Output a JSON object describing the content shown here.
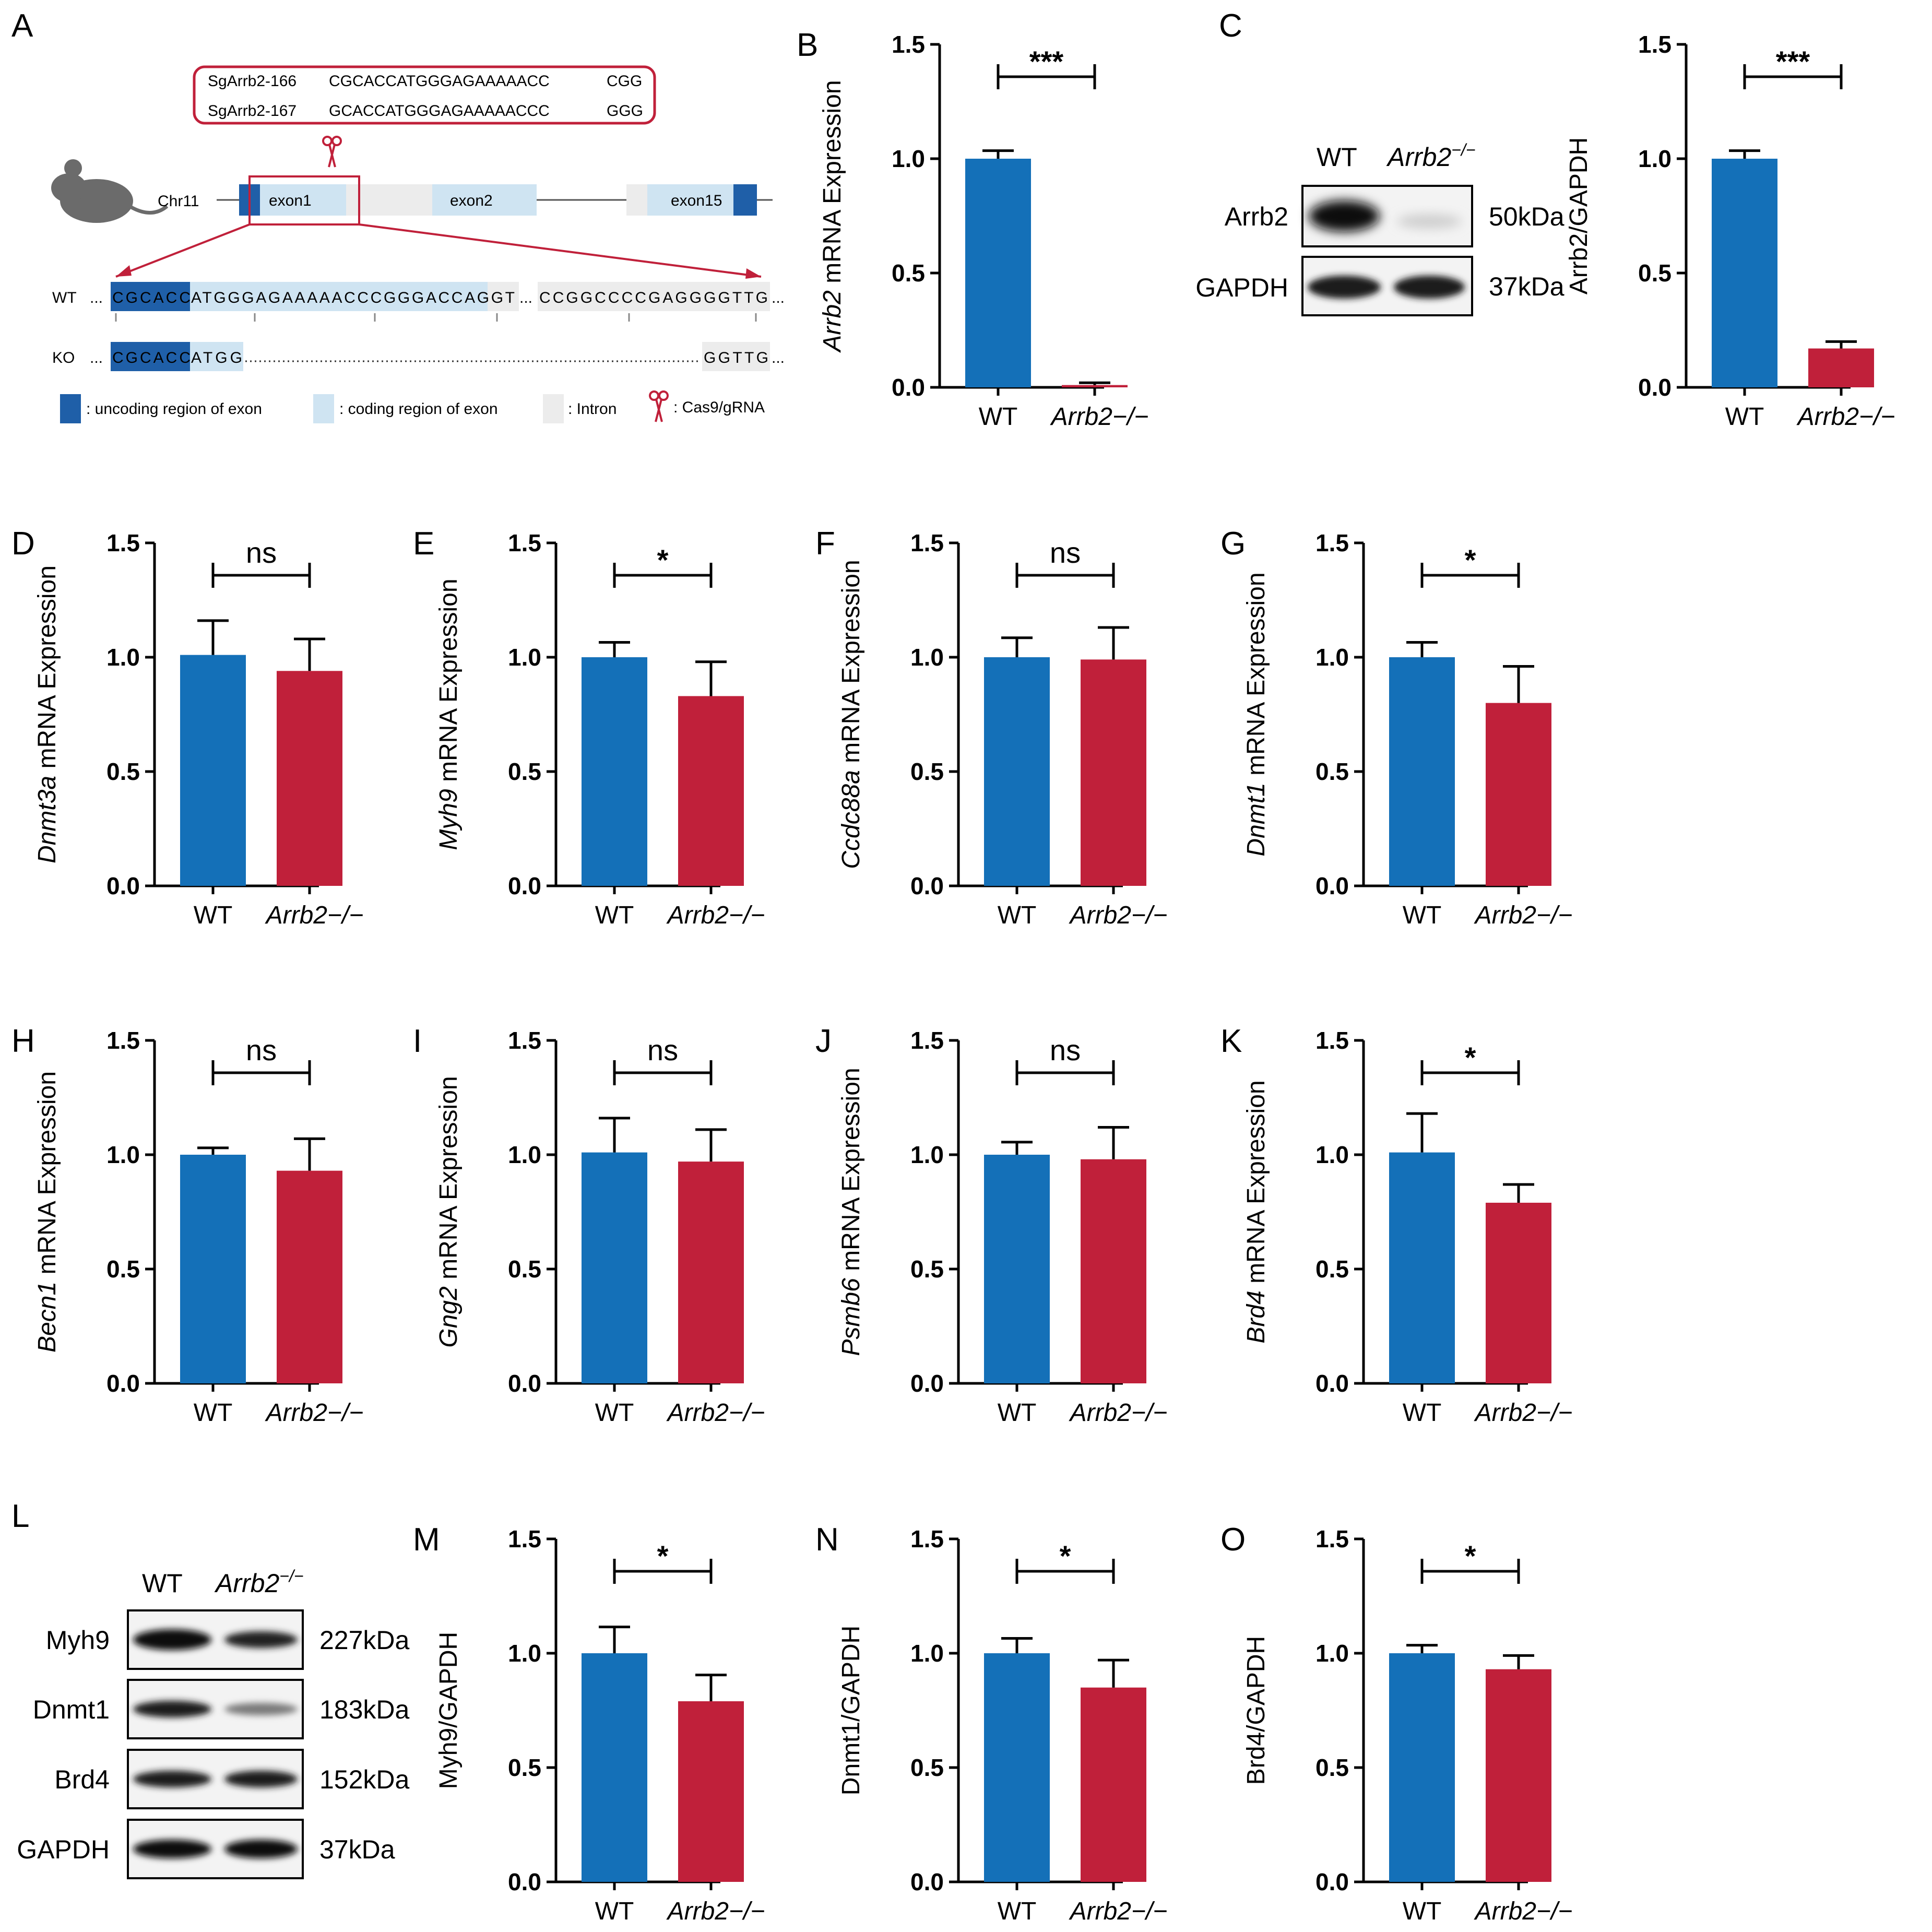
{
  "colors": {
    "wt": "#1470b8",
    "ko": "#c0203a",
    "dark_exon": "#1f5fa8",
    "light_exon": "#cfe4f2",
    "intron": "#ececec",
    "box": "#c0203a"
  },
  "panel_a": {
    "letter": "A",
    "sg1_name": "SgArrb2-166",
    "sg1_seq": "CGCACCATGGGAGAAAAACC",
    "sg1_pam": "CGG",
    "sg2_name": "SgArrb2-167",
    "sg2_seq": "GCACCATGGGAGAAAAACCC",
    "sg2_pam": "GGG",
    "chr": "Chr11",
    "exon1": "exon1",
    "exon2": "exon2",
    "exon15": "exon15",
    "wt_label": "WT",
    "wt_dark": "CGCACC",
    "wt_light": "ATGGGAGAAAAACCCGGGACCAGGT",
    "wt_end": "CCGGCCCCGAGGGGTTG",
    "ko_label": "KO",
    "ko_dark": "CGCACC",
    "ko_light": "ATGG",
    "ko_end": "GGTTG",
    "ellipsis": "...",
    "legend_uncoding": ": uncoding region of exon",
    "legend_coding": ": coding region of exon",
    "legend_intron": ": Intron",
    "legend_cas9": ": Cas9/gRNA"
  },
  "blot_c": {
    "letter": "C",
    "lane_wt": "WT",
    "lane_ko": "Arrb2",
    "lane_ko_sup": "−/−",
    "rows": [
      {
        "protein": "Arrb2",
        "kda": "50kDa"
      },
      {
        "protein": "GAPDH",
        "kda": "37kDa"
      }
    ]
  },
  "blot_l": {
    "letter": "L",
    "lane_wt": "WT",
    "lane_ko": "Arrb2",
    "lane_ko_sup": "−/−",
    "rows": [
      {
        "protein": "Myh9",
        "kda": "227kDa"
      },
      {
        "protein": "Dnmt1",
        "kda": "183kDa"
      },
      {
        "protein": "Brd4",
        "kda": "152kDa"
      },
      {
        "protein": "GAPDH",
        "kda": "37kDa"
      }
    ]
  },
  "chart_data": [
    {
      "panel": "B",
      "type": "bar",
      "categories": [
        "WT",
        "Arrb2−/−"
      ],
      "values": [
        1.0,
        0.01
      ],
      "errors": [
        0.035,
        0.01
      ],
      "ylabel_gene": "Arrb2",
      "ylabel_rest": " mRNA Expression",
      "ylim": [
        0,
        1.5
      ],
      "yticks": [
        "0.0",
        "0.5",
        "1.0",
        "1.5"
      ],
      "sig": "***"
    },
    {
      "panel": "C",
      "type": "bar",
      "categories": [
        "WT",
        "Arrb2−/−"
      ],
      "values": [
        1.0,
        0.17
      ],
      "errors": [
        0.035,
        0.03
      ],
      "ylabel_gene": "",
      "ylabel_rest": "Arrb2/GAPDH",
      "ylim": [
        0,
        1.5
      ],
      "yticks": [
        "0.0",
        "0.5",
        "1.0",
        "1.5"
      ],
      "sig": "***"
    },
    {
      "panel": "D",
      "type": "bar",
      "categories": [
        "WT",
        "Arrb2−/−"
      ],
      "values": [
        1.01,
        0.94
      ],
      "errors": [
        0.15,
        0.14
      ],
      "ylabel_gene": "Dnmt3a",
      "ylabel_rest": " mRNA Expression",
      "ylim": [
        0,
        1.5
      ],
      "yticks": [
        "0.0",
        "0.5",
        "1.0",
        "1.5"
      ],
      "sig": "ns"
    },
    {
      "panel": "E",
      "type": "bar",
      "categories": [
        "WT",
        "Arrb2−/−"
      ],
      "values": [
        1.0,
        0.83
      ],
      "errors": [
        0.065,
        0.15
      ],
      "ylabel_gene": "Myh9",
      "ylabel_rest": " mRNA Expression",
      "ylim": [
        0,
        1.5
      ],
      "yticks": [
        "0.0",
        "0.5",
        "1.0",
        "1.5"
      ],
      "sig": "*"
    },
    {
      "panel": "F",
      "type": "bar",
      "categories": [
        "WT",
        "Arrb2−/−"
      ],
      "values": [
        1.0,
        0.99
      ],
      "errors": [
        0.085,
        0.14
      ],
      "ylabel_gene": "Ccdc88a",
      "ylabel_rest": " mRNA Expression",
      "ylim": [
        0,
        1.5
      ],
      "yticks": [
        "0.0",
        "0.5",
        "1.0",
        "1.5"
      ],
      "sig": "ns"
    },
    {
      "panel": "G",
      "type": "bar",
      "categories": [
        "WT",
        "Arrb2−/−"
      ],
      "values": [
        1.0,
        0.8
      ],
      "errors": [
        0.065,
        0.16
      ],
      "ylabel_gene": "Dnmt1",
      "ylabel_rest": " mRNA Expression",
      "ylim": [
        0,
        1.5
      ],
      "yticks": [
        "0.0",
        "0.5",
        "1.0",
        "1.5"
      ],
      "sig": "*"
    },
    {
      "panel": "H",
      "type": "bar",
      "categories": [
        "WT",
        "Arrb2−/−"
      ],
      "values": [
        1.0,
        0.93
      ],
      "errors": [
        0.03,
        0.14
      ],
      "ylabel_gene": "Becn1",
      "ylabel_rest": " mRNA Expression",
      "ylim": [
        0,
        1.5
      ],
      "yticks": [
        "0.0",
        "0.5",
        "1.0",
        "1.5"
      ],
      "sig": "ns"
    },
    {
      "panel": "I",
      "type": "bar",
      "categories": [
        "WT",
        "Arrb2−/−"
      ],
      "values": [
        1.01,
        0.97
      ],
      "errors": [
        0.15,
        0.14
      ],
      "ylabel_gene": "Gng2",
      "ylabel_rest": " mRNA Expression",
      "ylim": [
        0,
        1.5
      ],
      "yticks": [
        "0.0",
        "0.5",
        "1.0",
        "1.5"
      ],
      "sig": "ns"
    },
    {
      "panel": "J",
      "type": "bar",
      "categories": [
        "WT",
        "Arrb2−/−"
      ],
      "values": [
        1.0,
        0.98
      ],
      "errors": [
        0.055,
        0.14
      ],
      "ylabel_gene": "Psmb6",
      "ylabel_rest": " mRNA Expression",
      "ylim": [
        0,
        1.5
      ],
      "yticks": [
        "0.0",
        "0.5",
        "1.0",
        "1.5"
      ],
      "sig": "ns"
    },
    {
      "panel": "K",
      "type": "bar",
      "categories": [
        "WT",
        "Arrb2−/−"
      ],
      "values": [
        1.01,
        0.79
      ],
      "errors": [
        0.17,
        0.08
      ],
      "ylabel_gene": "Brd4",
      "ylabel_rest": " mRNA Expression",
      "ylim": [
        0,
        1.5
      ],
      "yticks": [
        "0.0",
        "0.5",
        "1.0",
        "1.5"
      ],
      "sig": "*"
    },
    {
      "panel": "M",
      "type": "bar",
      "categories": [
        "WT",
        "Arrb2−/−"
      ],
      "values": [
        1.0,
        0.79
      ],
      "errors": [
        0.115,
        0.115
      ],
      "ylabel_gene": "",
      "ylabel_rest": "Myh9/GAPDH",
      "ylim": [
        0,
        1.5
      ],
      "yticks": [
        "0.0",
        "0.5",
        "1.0",
        "1.5"
      ],
      "sig": "*"
    },
    {
      "panel": "N",
      "type": "bar",
      "categories": [
        "WT",
        "Arrb2−/−"
      ],
      "values": [
        1.0,
        0.85
      ],
      "errors": [
        0.065,
        0.12
      ],
      "ylabel_gene": "",
      "ylabel_rest": "Dnmt1/GAPDH",
      "ylim": [
        0,
        1.5
      ],
      "yticks": [
        "0.0",
        "0.5",
        "1.0",
        "1.5"
      ],
      "sig": "*"
    },
    {
      "panel": "O",
      "type": "bar",
      "categories": [
        "WT",
        "Arrb2−/−"
      ],
      "values": [
        1.0,
        0.93
      ],
      "errors": [
        0.035,
        0.06
      ],
      "ylabel_gene": "",
      "ylabel_rest": "Brd4/GAPDH",
      "ylim": [
        0,
        1.5
      ],
      "yticks": [
        "0.0",
        "0.5",
        "1.0",
        "1.5"
      ],
      "sig": "*"
    }
  ]
}
